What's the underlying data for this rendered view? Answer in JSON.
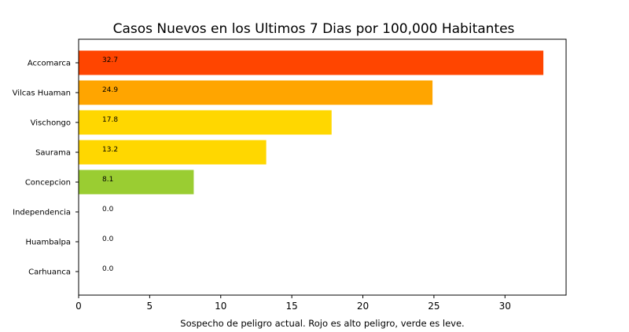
{
  "chart_data": {
    "type": "bar",
    "orientation": "horizontal",
    "title": "Casos Nuevos en los Ultimos 7 Dias por 100,000 Habitantes",
    "xlabel": "Sospecho de peligro actual. Rojo es alto peligro, verde es leve.",
    "ylabel": "",
    "xlim": [
      0,
      34.3
    ],
    "xticks": [
      0,
      5,
      10,
      15,
      20,
      25,
      30
    ],
    "grid": false,
    "categories": [
      "Accomarca",
      "Vilcas Huaman",
      "Vischongo",
      "Saurama",
      "Concepcion",
      "Independencia",
      "Huambalpa",
      "Carhuanca"
    ],
    "values": [
      32.7,
      24.9,
      17.8,
      13.2,
      8.1,
      0.0,
      0.0,
      0.0
    ],
    "value_labels": [
      "32.7",
      "24.9",
      "17.8",
      "13.2",
      "8.1",
      "0.0",
      "0.0",
      "0.0"
    ],
    "colors": [
      "#ff4500",
      "#ffa500",
      "#ffd700",
      "#ffd700",
      "#9acd32",
      "#9acd32",
      "#9acd32",
      "#9acd32"
    ]
  }
}
